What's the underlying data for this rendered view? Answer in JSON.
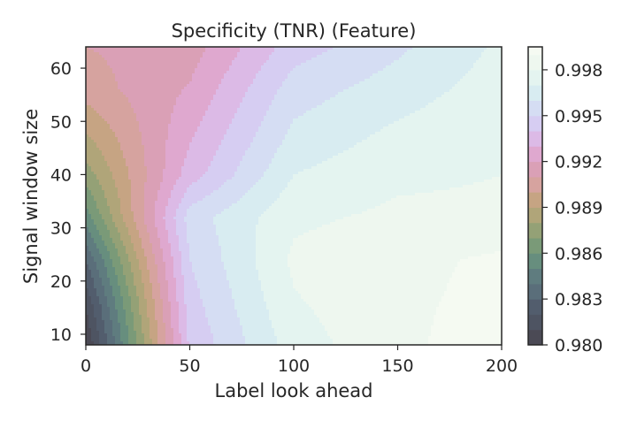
{
  "chart_data": {
    "type": "heatmap",
    "subtype": "filled-contour",
    "title": "Specificity (TNR) (Feature)",
    "xlabel": "Label look ahead",
    "ylabel": "Signal window size",
    "xlim": [
      0,
      200
    ],
    "ylim": [
      8,
      64
    ],
    "x_ticks": [
      0,
      50,
      100,
      150,
      200
    ],
    "y_ticks": [
      10,
      20,
      30,
      40,
      50,
      60
    ],
    "grid": false,
    "colorbar": {
      "position": "right",
      "range": [
        0.98,
        0.9995
      ],
      "ticks": [
        "0.980",
        "0.983",
        "0.986",
        "0.989",
        "0.992",
        "0.995",
        "0.998"
      ],
      "tick_values": [
        0.98,
        0.983,
        0.986,
        0.989,
        0.992,
        0.995,
        0.998
      ],
      "level_step": 0.001,
      "level_colors": [
        "#4b4a55",
        "#4e5462",
        "#525d6d",
        "#5a6e7a",
        "#5f7c7f",
        "#678e7e",
        "#7a9a78",
        "#94a176",
        "#b0a579",
        "#c6a483",
        "#d6a39f",
        "#daa0b6",
        "#dfa8cf",
        "#dcbae6",
        "#d6cdf2",
        "#d5ddf3",
        "#d8ecf1",
        "#e4f4f0",
        "#eef7ef",
        "#f5faf2"
      ]
    },
    "grid_x": [
      0,
      50,
      100,
      150,
      200
    ],
    "grid_y": [
      8,
      16,
      24,
      32,
      40,
      48,
      56,
      64
    ],
    "z": [
      [
        0.98,
        0.9942,
        0.9975,
        0.9988,
        0.9995
      ],
      [
        0.9812,
        0.9946,
        0.9979,
        0.9988,
        0.9993
      ],
      [
        0.983,
        0.995,
        0.9982,
        0.9987,
        0.9992
      ],
      [
        0.9855,
        0.9955,
        0.9978,
        0.9982,
        0.9982
      ],
      [
        0.9875,
        0.9935,
        0.997,
        0.9978,
        0.998
      ],
      [
        0.989,
        0.9928,
        0.9962,
        0.9972,
        0.9978
      ],
      [
        0.9905,
        0.9921,
        0.9955,
        0.9965,
        0.9975
      ],
      [
        0.991,
        0.9915,
        0.9945,
        0.9958,
        0.9972
      ]
    ]
  }
}
